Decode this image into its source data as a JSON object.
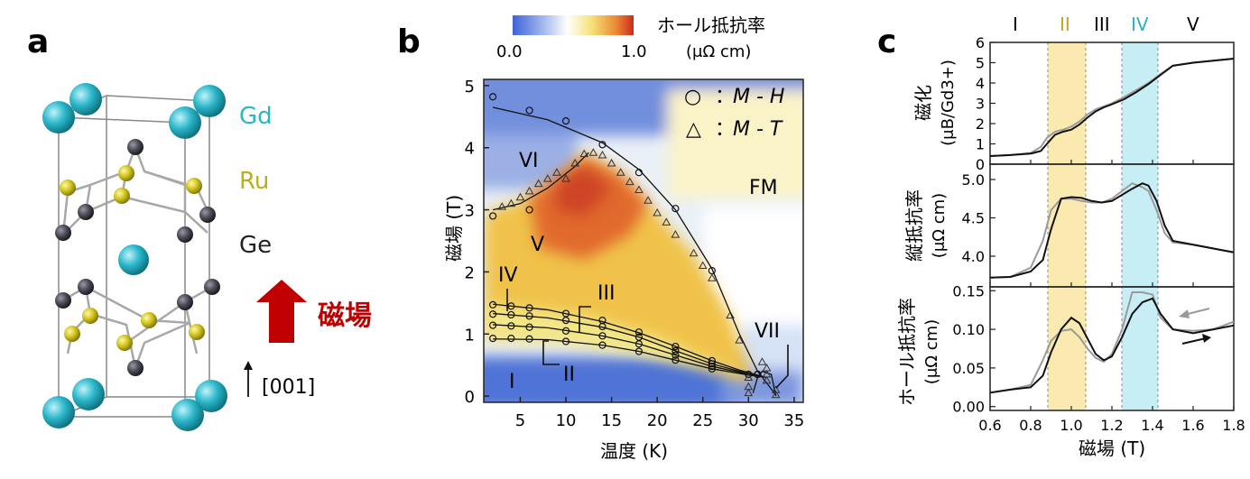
{
  "panel_a": {
    "letter": "a",
    "atoms": [
      {
        "name": "Gd",
        "color": "#2ab6c9"
      },
      {
        "name": "Ru",
        "color": "#b8b11c"
      },
      {
        "name": "Ge",
        "color": "#222222"
      }
    ],
    "field_label": "磁場",
    "field_color": "#c00000",
    "direction_label": "[001]"
  },
  "panel_b": {
    "letter": "b",
    "colorbar": {
      "min": "0.0",
      "max": "1.0",
      "title": "ホール抵抗率",
      "unit": "(μΩ cm)"
    },
    "legend": [
      {
        "marker": "○",
        "sep": "：",
        "label": "M - H"
      },
      {
        "marker": "△",
        "sep": "：",
        "label": "M - T"
      }
    ],
    "regions": {
      "fm": "FM",
      "vi": "VI",
      "v": "V",
      "iv": "IV",
      "iii": "III",
      "ii": "II",
      "i": "I",
      "vii": "VII"
    }
  },
  "panel_c": {
    "letter": "c",
    "phase_labels": [
      "I",
      "II",
      "III",
      "IV",
      "V"
    ],
    "phase_colors": {
      "II": "#c9a21e",
      "IV": "#2bb1c8"
    },
    "xlabel": "磁場 (T)",
    "subplots": [
      {
        "ylabel": "磁化",
        "yunit": "(μB/Gd3+)"
      },
      {
        "ylabel": "縦抵抗率",
        "yunit": "(μΩ cm)"
      },
      {
        "ylabel": "ホール抵抗率",
        "yunit": "(μΩ cm)"
      }
    ]
  },
  "chart_data": [
    {
      "type": "scatter",
      "xlabel": "温度 (K)",
      "ylabel": "磁場 (T)",
      "xlim": [
        1,
        36
      ],
      "ylim": [
        -0.1,
        5.1
      ],
      "xticks": [
        "5",
        "10",
        "15",
        "20",
        "25",
        "30",
        "35"
      ],
      "yticks": [
        "0",
        "1",
        "2",
        "3",
        "4",
        "5"
      ],
      "series": [
        {
          "name": "M - H",
          "marker": "circle",
          "points": [
            [
              2,
              4.82
            ],
            [
              6,
              4.6
            ],
            [
              10,
              4.43
            ],
            [
              14,
              4.05
            ],
            [
              18,
              3.6
            ],
            [
              22,
              3.02
            ],
            [
              26,
              2.02
            ],
            [
              31,
              0.35
            ],
            [
              2,
              2.9
            ],
            [
              6,
              3.0
            ],
            [
              2,
              1.47
            ],
            [
              4,
              1.45
            ],
            [
              6,
              1.42
            ],
            [
              10,
              1.33
            ],
            [
              14,
              1.22
            ],
            [
              18,
              1.03
            ],
            [
              22,
              0.8
            ],
            [
              26,
              0.57
            ],
            [
              31,
              0.35
            ],
            [
              2,
              1.32
            ],
            [
              4,
              1.31
            ],
            [
              6,
              1.29
            ],
            [
              10,
              1.22
            ],
            [
              14,
              1.12
            ],
            [
              18,
              0.95
            ],
            [
              22,
              0.73
            ],
            [
              26,
              0.52
            ],
            [
              2,
              1.14
            ],
            [
              4,
              1.13
            ],
            [
              6,
              1.11
            ],
            [
              10,
              1.05
            ],
            [
              14,
              0.97
            ],
            [
              18,
              0.84
            ],
            [
              22,
              0.66
            ],
            [
              26,
              0.48
            ],
            [
              2,
              0.93
            ],
            [
              4,
              0.93
            ],
            [
              6,
              0.92
            ],
            [
              10,
              0.88
            ],
            [
              14,
              0.82
            ],
            [
              18,
              0.72
            ],
            [
              22,
              0.58
            ],
            [
              26,
              0.44
            ],
            [
              30,
              0.35
            ]
          ]
        },
        {
          "name": "M - T",
          "marker": "triangle",
          "points": [
            [
              3,
              3.05
            ],
            [
              4,
              3.1
            ],
            [
              5,
              3.2
            ],
            [
              6,
              3.3
            ],
            [
              7,
              3.42
            ],
            [
              8,
              3.5
            ],
            [
              9,
              3.6
            ],
            [
              10,
              3.5
            ],
            [
              11,
              3.75
            ],
            [
              12,
              3.9
            ],
            [
              13,
              3.92
            ],
            [
              14,
              3.88
            ],
            [
              15,
              3.75
            ],
            [
              16,
              3.6
            ],
            [
              17,
              3.45
            ],
            [
              18,
              3.32
            ],
            [
              19,
              3.15
            ],
            [
              20,
              2.95
            ],
            [
              21,
              2.8
            ],
            [
              22,
              2.6
            ],
            [
              24,
              2.3
            ],
            [
              25,
              2.1
            ],
            [
              26,
              1.9
            ],
            [
              28,
              1.3
            ],
            [
              29,
              0.9
            ],
            [
              30,
              0.3
            ],
            [
              30,
              0.15
            ],
            [
              30,
              0.05
            ],
            [
              31.5,
              0.55
            ],
            [
              32,
              0.45
            ],
            [
              32,
              0.35
            ],
            [
              32,
              0.25
            ],
            [
              33,
              0.1
            ],
            [
              33,
              0.02
            ]
          ]
        }
      ],
      "colorscale": {
        "min": 0.0,
        "max": 1.0
      }
    },
    {
      "type": "line",
      "ylabel": "磁化 (μB/Gd3+)",
      "xlim": [
        0.6,
        1.8
      ],
      "ylim": [
        0,
        6
      ],
      "yticks": [
        "0",
        "1",
        "2",
        "3",
        "4",
        "5",
        "6"
      ],
      "series": [
        {
          "name": "black",
          "x": [
            0.6,
            0.7,
            0.8,
            0.85,
            0.88,
            0.92,
            0.96,
            1.0,
            1.04,
            1.08,
            1.12,
            1.16,
            1.2,
            1.26,
            1.32,
            1.38,
            1.44,
            1.5,
            1.6,
            1.7,
            1.8
          ],
          "y": [
            0.4,
            0.45,
            0.52,
            0.65,
            1.0,
            1.45,
            1.6,
            1.7,
            1.95,
            2.3,
            2.6,
            2.8,
            2.95,
            3.2,
            3.55,
            3.95,
            4.4,
            4.85,
            5.0,
            5.1,
            5.2
          ]
        },
        {
          "name": "gray",
          "x": [
            0.6,
            0.7,
            0.8,
            0.85,
            0.88,
            0.92,
            0.96,
            1.0,
            1.04,
            1.08,
            1.12,
            1.16,
            1.2,
            1.26,
            1.32,
            1.38,
            1.44,
            1.5,
            1.6,
            1.7,
            1.8
          ],
          "y": [
            0.4,
            0.45,
            0.55,
            0.85,
            1.3,
            1.6,
            1.7,
            1.85,
            2.1,
            2.45,
            2.7,
            2.85,
            3.0,
            3.3,
            3.65,
            4.0,
            4.45,
            4.85,
            5.0,
            5.1,
            5.2
          ]
        }
      ]
    },
    {
      "type": "line",
      "ylabel": "縦抵抗率 (μΩ cm)",
      "xlim": [
        0.6,
        1.8
      ],
      "ylim": [
        3.6,
        5.2
      ],
      "yticks": [
        "4.0",
        "4.5",
        "5.0"
      ],
      "series": [
        {
          "name": "black",
          "x": [
            0.6,
            0.7,
            0.8,
            0.86,
            0.9,
            0.95,
            1.0,
            1.05,
            1.1,
            1.15,
            1.2,
            1.25,
            1.3,
            1.35,
            1.38,
            1.42,
            1.46,
            1.5,
            1.6,
            1.7,
            1.8
          ],
          "y": [
            3.72,
            3.73,
            3.8,
            3.95,
            4.35,
            4.75,
            4.77,
            4.76,
            4.72,
            4.7,
            4.72,
            4.8,
            4.88,
            4.95,
            4.92,
            4.72,
            4.4,
            4.2,
            4.15,
            4.1,
            4.05
          ]
        },
        {
          "name": "gray",
          "x": [
            0.6,
            0.7,
            0.8,
            0.86,
            0.9,
            0.95,
            1.0,
            1.05,
            1.1,
            1.15,
            1.2,
            1.25,
            1.3,
            1.35,
            1.38,
            1.42,
            1.46,
            1.5,
            1.6,
            1.7,
            1.8
          ],
          "y": [
            3.72,
            3.73,
            3.85,
            4.2,
            4.6,
            4.75,
            4.75,
            4.72,
            4.7,
            4.7,
            4.75,
            4.85,
            4.95,
            4.9,
            4.85,
            4.6,
            4.3,
            4.18,
            4.15,
            4.1,
            4.05
          ]
        }
      ]
    },
    {
      "type": "line",
      "ylabel": "ホール抵抗率 (μΩ cm)",
      "xlabel": "磁場 (T)",
      "xlim": [
        0.6,
        1.8
      ],
      "ylim": [
        -0.005,
        0.155
      ],
      "xticks": [
        "0.6",
        "0.8",
        "1.0",
        "1.2",
        "1.4",
        "1.6",
        "1.8"
      ],
      "yticks": [
        "0.00",
        "0.05",
        "0.10",
        "0.15"
      ],
      "series": [
        {
          "name": "black",
          "x": [
            0.6,
            0.7,
            0.8,
            0.86,
            0.9,
            0.95,
            1.0,
            1.04,
            1.08,
            1.12,
            1.16,
            1.2,
            1.25,
            1.3,
            1.35,
            1.4,
            1.44,
            1.5,
            1.6,
            1.7,
            1.8
          ],
          "y": [
            0.018,
            0.022,
            0.025,
            0.04,
            0.07,
            0.1,
            0.115,
            0.108,
            0.088,
            0.068,
            0.06,
            0.065,
            0.09,
            0.12,
            0.135,
            0.14,
            0.12,
            0.1,
            0.095,
            0.1,
            0.105
          ]
        },
        {
          "name": "gray",
          "x": [
            0.6,
            0.7,
            0.8,
            0.86,
            0.9,
            0.95,
            1.0,
            1.04,
            1.08,
            1.12,
            1.16,
            1.2,
            1.25,
            1.3,
            1.35,
            1.4,
            1.44,
            1.5,
            1.6,
            1.7,
            1.8
          ],
          "y": [
            0.018,
            0.022,
            0.028,
            0.06,
            0.085,
            0.098,
            0.1,
            0.09,
            0.075,
            0.063,
            0.058,
            0.068,
            0.1,
            0.148,
            0.148,
            0.145,
            0.115,
            0.1,
            0.098,
            0.1,
            0.11
          ]
        }
      ]
    }
  ]
}
